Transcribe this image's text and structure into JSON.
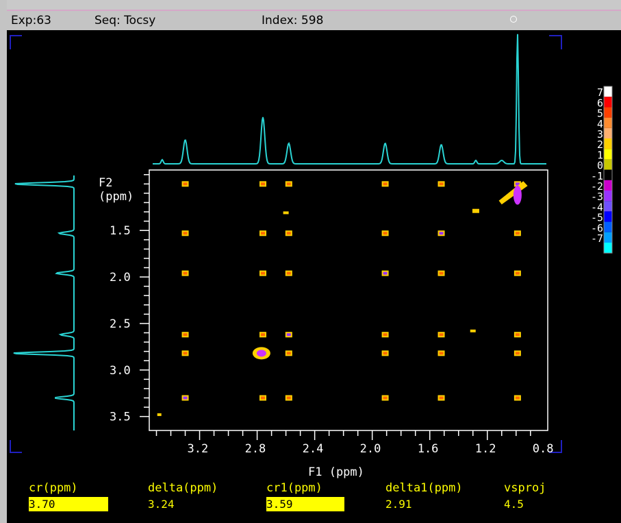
{
  "topbar": {
    "exp": "Exp:63",
    "seq": "Seq: Tocsy",
    "index": "Index: 598"
  },
  "chart_data": {
    "type": "heatmap",
    "subtype": "2D NMR contour plot (TOCSY)",
    "xlabel": "F1 (ppm)",
    "ylabel": "F2 (ppm)",
    "xlim": [
      3.55,
      0.78
    ],
    "ylim": [
      3.65,
      0.85
    ],
    "x_reversed": true,
    "y_direction": "increasing downward",
    "x_ticks": [
      "3.2",
      "2.8",
      "2.4",
      "2.0",
      "1.6",
      "1.2",
      "0.8"
    ],
    "y_ticks": [
      "1.5",
      "2.0",
      "2.5",
      "3.0",
      "3.5"
    ],
    "peaks_f1": [
      3.3,
      2.76,
      2.58,
      1.91,
      1.52,
      0.99
    ],
    "peaks_f2": [
      1.0,
      1.53,
      1.96,
      2.62,
      2.82,
      3.3
    ],
    "intensity_scale": [
      "7",
      "6",
      "5",
      "4",
      "3",
      "2",
      "1",
      "0",
      "-1",
      "-2",
      "-3",
      "-4",
      "-5",
      "-6",
      "-7"
    ],
    "scale_colors": [
      "#ffffff",
      "#ff0000",
      "#ff4000",
      "#ff8c30",
      "#ffb070",
      "#ffd000",
      "#ffff00",
      "#c8c800",
      "#000000",
      "#cc00cc",
      "#9933ff",
      "#7050ff",
      "#0000ff",
      "#0060ff",
      "#00a0ff",
      "#00ffff"
    ]
  },
  "params": [
    {
      "label": "cr(ppm)",
      "value": "3.70"
    },
    {
      "label": "delta(ppm)",
      "value": "3.24"
    },
    {
      "label": "cr1(ppm)",
      "value": "3.59"
    },
    {
      "label": "delta1(ppm)",
      "value": "2.91"
    },
    {
      "label": "vsproj",
      "value": "4.5"
    }
  ],
  "colors": {
    "spectrum": "#2ad4d4",
    "text": "#ffff00",
    "frame": "#2020c0"
  }
}
